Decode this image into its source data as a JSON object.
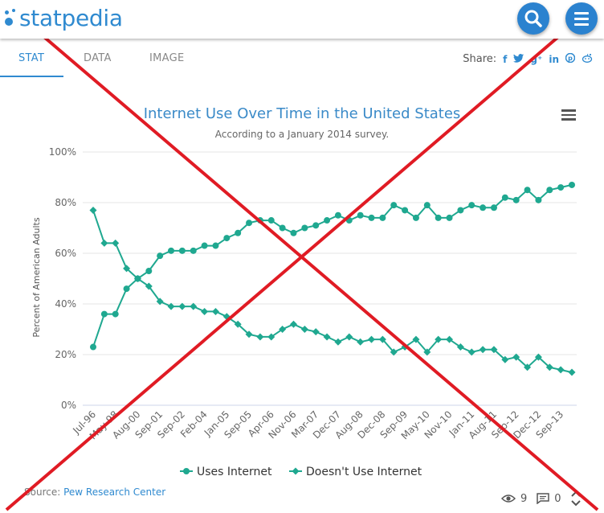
{
  "header": {
    "logo_text": "statpedia",
    "search_icon": "search-icon",
    "menu_icon": "hamburger-menu-icon",
    "accent": "#2f8ad0"
  },
  "tabs": [
    {
      "label": "STAT",
      "active": true
    },
    {
      "label": "DATA",
      "active": false
    },
    {
      "label": "IMAGE",
      "active": false
    }
  ],
  "share": {
    "label": "Share:",
    "icons": [
      "facebook-icon",
      "twitter-icon",
      "google-plus-icon",
      "linkedin-icon",
      "pinterest-icon",
      "reddit-icon"
    ]
  },
  "footer": {
    "source_label": "Source:",
    "source_name": "Pew Research Center",
    "views": "9",
    "comments": "0"
  },
  "chart_data": {
    "type": "line",
    "title": "Internet Use Over Time in the United States",
    "subtitle": "According to a January 2014 survey.",
    "xlabel": "",
    "ylabel": "Percent of American Adults",
    "ylim": [
      0,
      100
    ],
    "yticks": [
      "0%",
      "20%",
      "40%",
      "60%",
      "80%",
      "100%"
    ],
    "x_tick_labels": [
      "Jul-96",
      "May-98",
      "Aug-00",
      "Sep-01",
      "Sep-02",
      "Feb-04",
      "Jan-05",
      "Sep-05",
      "Apr-06",
      "Nov-06",
      "Mar-07",
      "Dec-07",
      "Aug-08",
      "Dec-08",
      "Sep-09",
      "May-10",
      "Nov-10",
      "Jan-11",
      "Aug-11",
      "Sep-12",
      "Dec-12",
      "Sep-13"
    ],
    "grid": true,
    "legend_position": "bottom",
    "series": [
      {
        "name": "Uses Internet",
        "color": "#1fa890",
        "marker": "circle",
        "values": [
          23,
          36,
          36,
          46,
          50,
          53,
          59,
          61,
          61,
          61,
          63,
          63,
          66,
          68,
          72,
          73,
          73,
          70,
          68,
          70,
          71,
          73,
          75,
          73,
          75,
          74,
          74,
          79,
          77,
          74,
          79,
          74,
          74,
          77,
          79,
          78,
          78,
          82,
          81,
          85,
          81,
          85,
          86,
          87
        ]
      },
      {
        "name": "Doesn't Use Internet",
        "color": "#1fa890",
        "marker": "diamond",
        "values": [
          77,
          64,
          64,
          54,
          50,
          47,
          41,
          39,
          39,
          39,
          37,
          37,
          35,
          32,
          28,
          27,
          27,
          30,
          32,
          30,
          29,
          27,
          25,
          27,
          25,
          26,
          26,
          21,
          23,
          26,
          21,
          26,
          26,
          23,
          21,
          22,
          22,
          18,
          19,
          15,
          19,
          15,
          14,
          13
        ]
      }
    ]
  },
  "overlay": {
    "cross_color": "#e01b24"
  }
}
